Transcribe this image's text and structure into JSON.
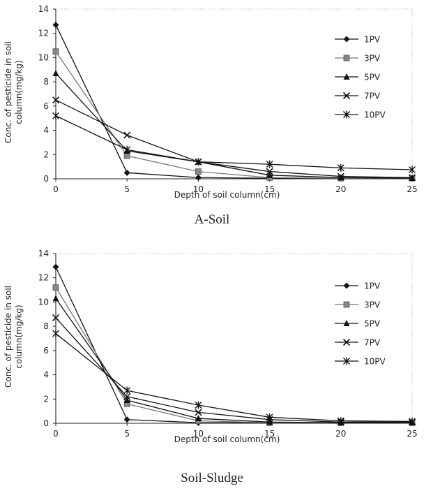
{
  "chart_data": [
    {
      "type": "line",
      "caption": "A-Soil",
      "xlabel": "Depth of soil column(cm)",
      "ylabel": [
        "Conc. of pesticide in soil",
        "column(mg/kg)"
      ],
      "x": [
        0,
        5,
        10,
        15,
        20,
        25
      ],
      "xlim": [
        0,
        25
      ],
      "ylim": [
        0,
        14
      ],
      "xticks": [
        "0",
        "5",
        "10",
        "15",
        "20",
        "25"
      ],
      "yticks": [
        "0",
        "2",
        "4",
        "6",
        "8",
        "10",
        "12",
        "14"
      ],
      "legend_position": "right",
      "series": [
        {
          "name": "1PV",
          "marker": "diamond",
          "values": [
            12.7,
            0.5,
            0.1,
            0.05,
            0.05,
            0.05
          ]
        },
        {
          "name": "3PV",
          "marker": "square",
          "values": [
            10.5,
            1.9,
            0.6,
            0.1,
            0.05,
            0.05
          ]
        },
        {
          "name": "5PV",
          "marker": "triangle",
          "values": [
            8.7,
            2.3,
            1.4,
            0.3,
            0.1,
            0.05
          ]
        },
        {
          "name": "7PV",
          "marker": "x",
          "values": [
            6.5,
            3.6,
            1.4,
            0.6,
            0.2,
            0.1
          ]
        },
        {
          "name": "10PV",
          "marker": "star",
          "values": [
            5.2,
            2.4,
            1.4,
            1.2,
            0.9,
            0.75
          ]
        }
      ]
    },
    {
      "type": "line",
      "caption": "Soil-Sludge",
      "xlabel": "Depth of soil column(cm)",
      "ylabel": [
        "Conc. of pesticide in soil",
        "column(mg/kg)"
      ],
      "x": [
        0,
        5,
        10,
        15,
        20,
        25
      ],
      "xlim": [
        0,
        25
      ],
      "ylim": [
        0,
        14
      ],
      "xticks": [
        "0",
        "5",
        "10",
        "15",
        "20",
        "25"
      ],
      "yticks": [
        "0",
        "2",
        "4",
        "6",
        "8",
        "10",
        "12",
        "14"
      ],
      "legend_position": "right",
      "series": [
        {
          "name": "1PV",
          "marker": "diamond",
          "values": [
            12.9,
            0.3,
            0.05,
            0.05,
            0.05,
            0.05
          ]
        },
        {
          "name": "3PV",
          "marker": "square",
          "values": [
            11.2,
            1.6,
            0.2,
            0.05,
            0.05,
            0.05
          ]
        },
        {
          "name": "5PV",
          "marker": "triangle",
          "values": [
            10.3,
            1.9,
            0.4,
            0.1,
            0.05,
            0.05
          ]
        },
        {
          "name": "7PV",
          "marker": "x",
          "values": [
            8.7,
            2.2,
            0.9,
            0.3,
            0.1,
            0.1
          ]
        },
        {
          "name": "10PV",
          "marker": "star",
          "values": [
            7.4,
            2.7,
            1.5,
            0.5,
            0.2,
            0.15
          ]
        }
      ]
    }
  ]
}
